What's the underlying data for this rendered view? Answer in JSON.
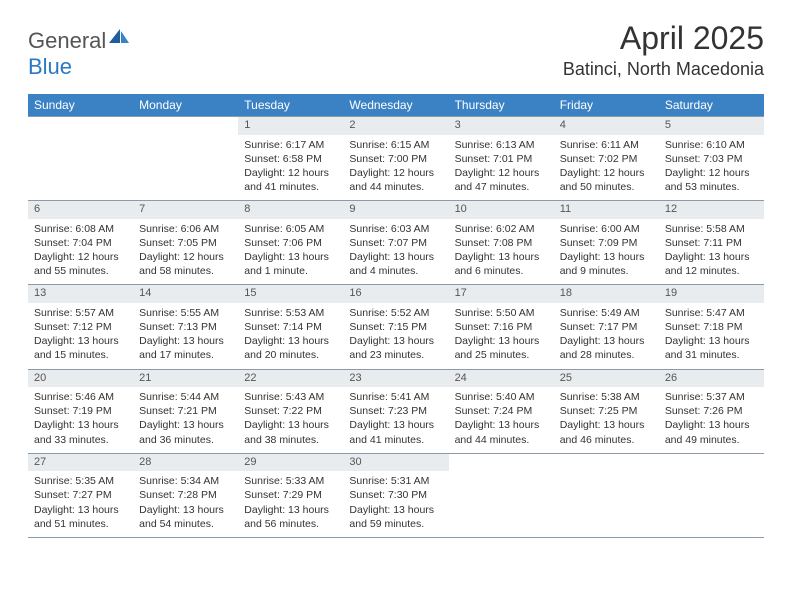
{
  "logo": {
    "text1": "General",
    "text2": "Blue"
  },
  "title": "April 2025",
  "location": "Batinci, North Macedonia",
  "header_bg": "#3b82c4",
  "daynum_bg": "#e9ecef",
  "border_color": "#8a9aa8",
  "days": [
    "Sunday",
    "Monday",
    "Tuesday",
    "Wednesday",
    "Thursday",
    "Friday",
    "Saturday"
  ],
  "weeks": [
    [
      null,
      null,
      {
        "n": "1",
        "sr": "6:17 AM",
        "ss": "6:58 PM",
        "dl": "12 hours and 41 minutes."
      },
      {
        "n": "2",
        "sr": "6:15 AM",
        "ss": "7:00 PM",
        "dl": "12 hours and 44 minutes."
      },
      {
        "n": "3",
        "sr": "6:13 AM",
        "ss": "7:01 PM",
        "dl": "12 hours and 47 minutes."
      },
      {
        "n": "4",
        "sr": "6:11 AM",
        "ss": "7:02 PM",
        "dl": "12 hours and 50 minutes."
      },
      {
        "n": "5",
        "sr": "6:10 AM",
        "ss": "7:03 PM",
        "dl": "12 hours and 53 minutes."
      }
    ],
    [
      {
        "n": "6",
        "sr": "6:08 AM",
        "ss": "7:04 PM",
        "dl": "12 hours and 55 minutes."
      },
      {
        "n": "7",
        "sr": "6:06 AM",
        "ss": "7:05 PM",
        "dl": "12 hours and 58 minutes."
      },
      {
        "n": "8",
        "sr": "6:05 AM",
        "ss": "7:06 PM",
        "dl": "13 hours and 1 minute."
      },
      {
        "n": "9",
        "sr": "6:03 AM",
        "ss": "7:07 PM",
        "dl": "13 hours and 4 minutes."
      },
      {
        "n": "10",
        "sr": "6:02 AM",
        "ss": "7:08 PM",
        "dl": "13 hours and 6 minutes."
      },
      {
        "n": "11",
        "sr": "6:00 AM",
        "ss": "7:09 PM",
        "dl": "13 hours and 9 minutes."
      },
      {
        "n": "12",
        "sr": "5:58 AM",
        "ss": "7:11 PM",
        "dl": "13 hours and 12 minutes."
      }
    ],
    [
      {
        "n": "13",
        "sr": "5:57 AM",
        "ss": "7:12 PM",
        "dl": "13 hours and 15 minutes."
      },
      {
        "n": "14",
        "sr": "5:55 AM",
        "ss": "7:13 PM",
        "dl": "13 hours and 17 minutes."
      },
      {
        "n": "15",
        "sr": "5:53 AM",
        "ss": "7:14 PM",
        "dl": "13 hours and 20 minutes."
      },
      {
        "n": "16",
        "sr": "5:52 AM",
        "ss": "7:15 PM",
        "dl": "13 hours and 23 minutes."
      },
      {
        "n": "17",
        "sr": "5:50 AM",
        "ss": "7:16 PM",
        "dl": "13 hours and 25 minutes."
      },
      {
        "n": "18",
        "sr": "5:49 AM",
        "ss": "7:17 PM",
        "dl": "13 hours and 28 minutes."
      },
      {
        "n": "19",
        "sr": "5:47 AM",
        "ss": "7:18 PM",
        "dl": "13 hours and 31 minutes."
      }
    ],
    [
      {
        "n": "20",
        "sr": "5:46 AM",
        "ss": "7:19 PM",
        "dl": "13 hours and 33 minutes."
      },
      {
        "n": "21",
        "sr": "5:44 AM",
        "ss": "7:21 PM",
        "dl": "13 hours and 36 minutes."
      },
      {
        "n": "22",
        "sr": "5:43 AM",
        "ss": "7:22 PM",
        "dl": "13 hours and 38 minutes."
      },
      {
        "n": "23",
        "sr": "5:41 AM",
        "ss": "7:23 PM",
        "dl": "13 hours and 41 minutes."
      },
      {
        "n": "24",
        "sr": "5:40 AM",
        "ss": "7:24 PM",
        "dl": "13 hours and 44 minutes."
      },
      {
        "n": "25",
        "sr": "5:38 AM",
        "ss": "7:25 PM",
        "dl": "13 hours and 46 minutes."
      },
      {
        "n": "26",
        "sr": "5:37 AM",
        "ss": "7:26 PM",
        "dl": "13 hours and 49 minutes."
      }
    ],
    [
      {
        "n": "27",
        "sr": "5:35 AM",
        "ss": "7:27 PM",
        "dl": "13 hours and 51 minutes."
      },
      {
        "n": "28",
        "sr": "5:34 AM",
        "ss": "7:28 PM",
        "dl": "13 hours and 54 minutes."
      },
      {
        "n": "29",
        "sr": "5:33 AM",
        "ss": "7:29 PM",
        "dl": "13 hours and 56 minutes."
      },
      {
        "n": "30",
        "sr": "5:31 AM",
        "ss": "7:30 PM",
        "dl": "13 hours and 59 minutes."
      },
      null,
      null,
      null
    ]
  ],
  "labels": {
    "sunrise": "Sunrise:",
    "sunset": "Sunset:",
    "daylight": "Daylight:"
  }
}
